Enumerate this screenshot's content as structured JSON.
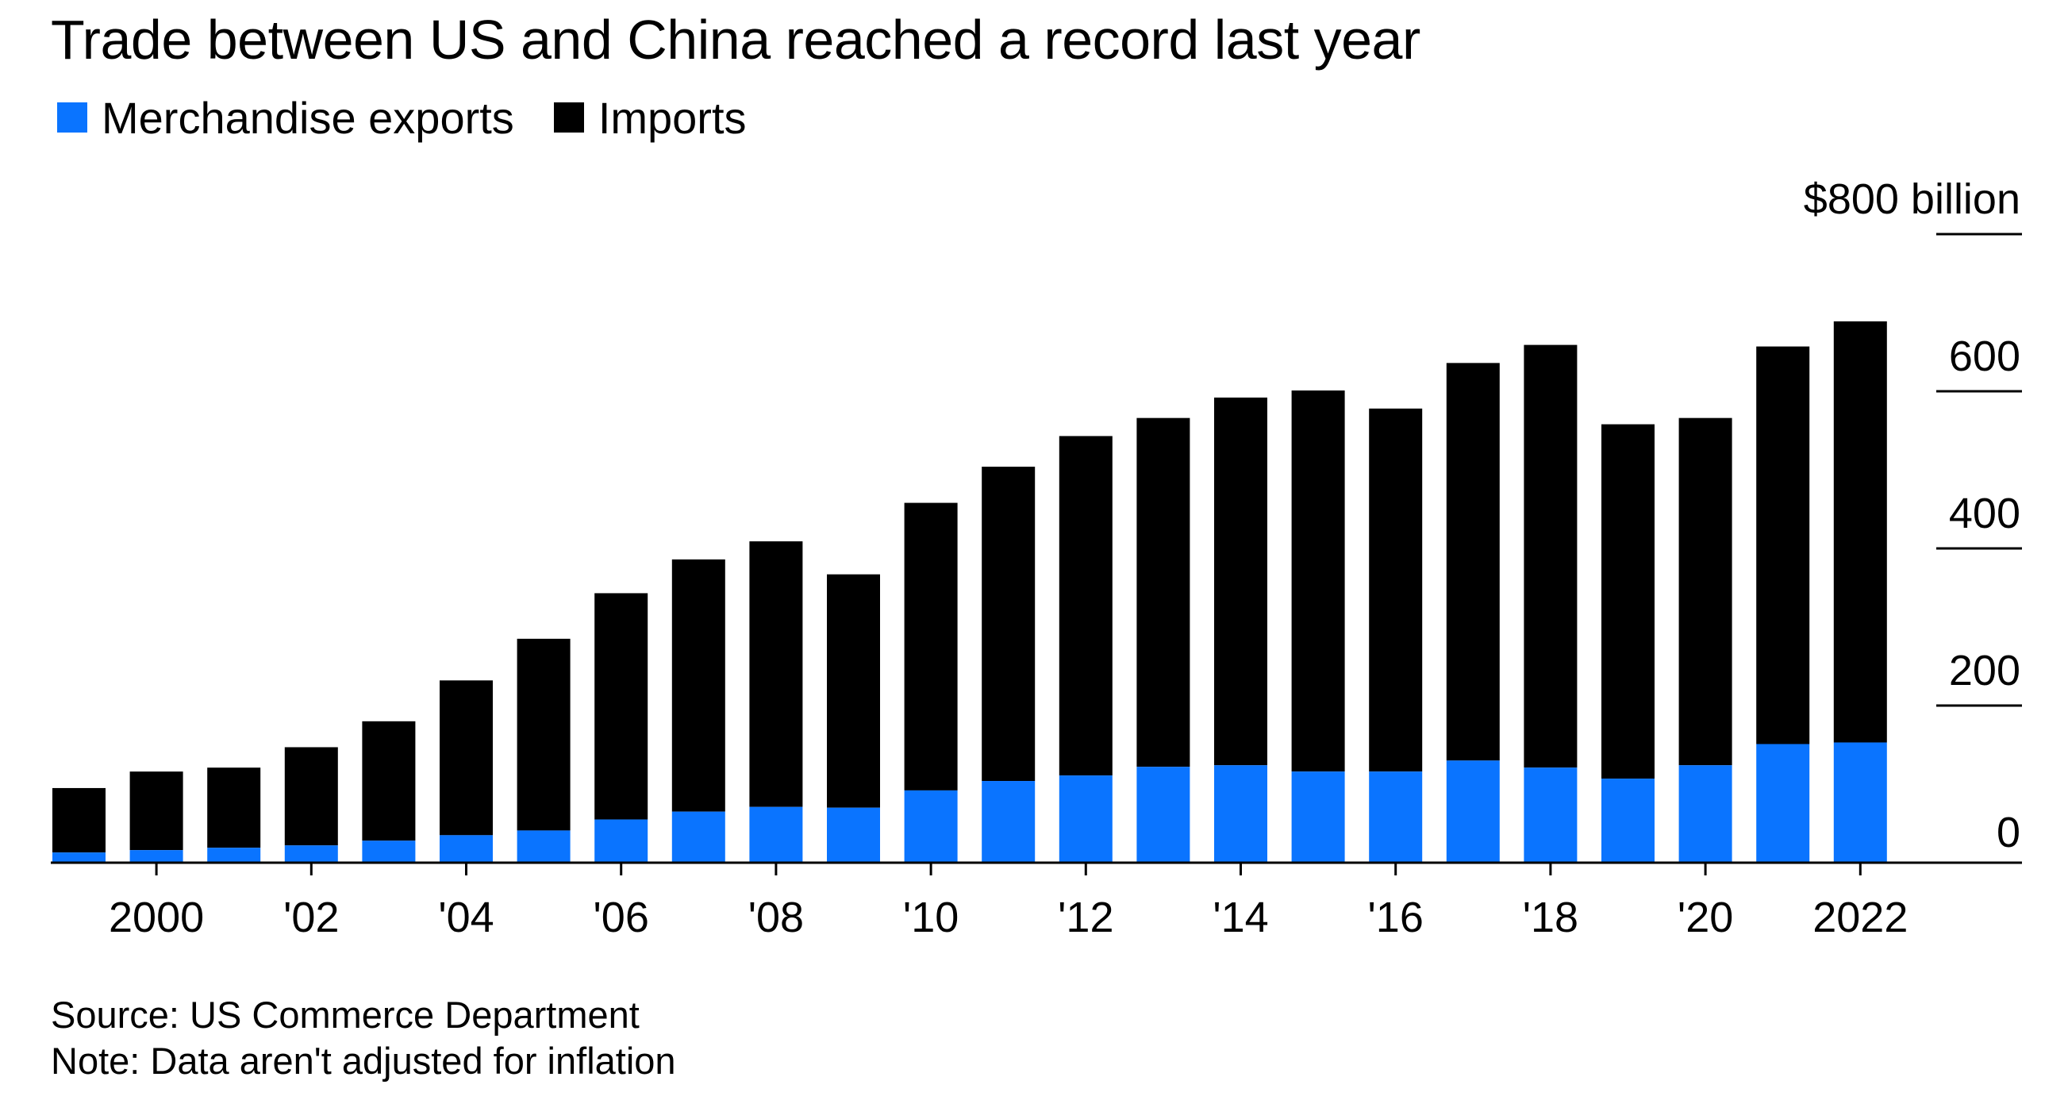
{
  "chart_data": {
    "type": "bar",
    "stacked": true,
    "title": "Trade between US and China reached a record last year",
    "unit_label": "$800 billion",
    "xlabel": "",
    "ylabel": "",
    "ylim": [
      0,
      800
    ],
    "yticks": [
      {
        "value": 0,
        "label": "0"
      },
      {
        "value": 200,
        "label": "200"
      },
      {
        "value": 400,
        "label": "400"
      },
      {
        "value": 600,
        "label": "600"
      },
      {
        "value": 800,
        "label": "$800 billion"
      }
    ],
    "categories": [
      "1999",
      "2000",
      "2001",
      "2002",
      "2003",
      "2004",
      "2005",
      "2006",
      "2007",
      "2008",
      "2009",
      "2010",
      "2011",
      "2012",
      "2013",
      "2014",
      "2015",
      "2016",
      "2017",
      "2018",
      "2019",
      "2020",
      "2021",
      "2022"
    ],
    "xtick_labels": [
      {
        "category": "2000",
        "label": "2000"
      },
      {
        "category": "2002",
        "label": "'02"
      },
      {
        "category": "2004",
        "label": "'04"
      },
      {
        "category": "2006",
        "label": "'06"
      },
      {
        "category": "2008",
        "label": "'08"
      },
      {
        "category": "2010",
        "label": "'10"
      },
      {
        "category": "2012",
        "label": "'12"
      },
      {
        "category": "2014",
        "label": "'14"
      },
      {
        "category": "2016",
        "label": "'16"
      },
      {
        "category": "2018",
        "label": "'18"
      },
      {
        "category": "2020",
        "label": "'20"
      },
      {
        "category": "2022",
        "label": "2022"
      }
    ],
    "series": [
      {
        "name": "Merchandise exports",
        "color": "#0a74ff",
        "values": [
          13,
          16,
          19,
          22,
          28,
          35,
          41,
          55,
          65,
          71,
          70,
          92,
          104,
          111,
          122,
          124,
          116,
          116,
          130,
          121,
          107,
          124,
          151,
          153
        ]
      },
      {
        "name": "Imports",
        "color": "#000000",
        "values": [
          82,
          100,
          102,
          125,
          152,
          197,
          244,
          288,
          321,
          338,
          297,
          366,
          400,
          432,
          444,
          468,
          485,
          462,
          506,
          538,
          451,
          442,
          506,
          536
        ]
      }
    ],
    "legend_position": "top-left"
  },
  "footer": {
    "source": "Source: US Commerce Department",
    "note": "Note: Data aren't adjusted for inflation"
  }
}
